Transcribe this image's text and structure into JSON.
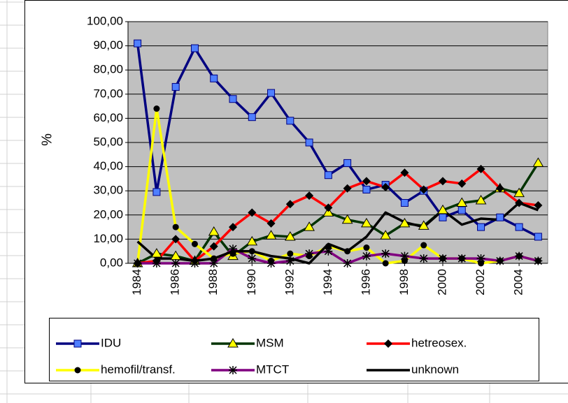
{
  "chart_data": {
    "type": "line",
    "y_label": "%",
    "x": [
      1984,
      1985,
      1986,
      1987,
      1988,
      1989,
      1990,
      1991,
      1992,
      1993,
      1994,
      1995,
      1996,
      1997,
      1998,
      1999,
      2000,
      2001,
      2002,
      2003,
      2004,
      2005
    ],
    "xlim": [
      1983.5,
      2005.5
    ],
    "xticks": [
      1984,
      1986,
      1988,
      1990,
      1992,
      1994,
      1996,
      1998,
      2000,
      2002,
      2004
    ],
    "ylim": [
      0,
      100
    ],
    "yticks": [
      {
        "value": 0,
        "label": "0,00"
      },
      {
        "value": 10,
        "label": "10,00"
      },
      {
        "value": 20,
        "label": "20,00"
      },
      {
        "value": 30,
        "label": "30,00"
      },
      {
        "value": 40,
        "label": "40,00"
      },
      {
        "value": 50,
        "label": "50,00"
      },
      {
        "value": 60,
        "label": "60,00"
      },
      {
        "value": 70,
        "label": "70,00"
      },
      {
        "value": 80,
        "label": "80,00"
      },
      {
        "value": 90,
        "label": "90,00"
      },
      {
        "value": 100,
        "label": "100,00"
      }
    ],
    "grid": true,
    "plot_background": "#c0c0c0",
    "series": [
      {
        "name": "IDU",
        "color": "#000080",
        "marker": "square",
        "marker_color": "#4f7fff",
        "values": [
          91,
          29.5,
          73,
          89,
          76.5,
          68,
          60.5,
          70.5,
          59,
          50,
          36.5,
          41.5,
          30.5,
          32.5,
          25,
          30,
          19,
          22,
          15,
          19,
          15,
          11
        ]
      },
      {
        "name": "MSM",
        "color": "#003300",
        "marker": "triangle",
        "marker_color": "#ffff00",
        "values": [
          0,
          4,
          3,
          1,
          13,
          3,
          9,
          11.5,
          11,
          15,
          21,
          18,
          16.5,
          11.5,
          16.5,
          15.5,
          22,
          25,
          26,
          31,
          29,
          41.5
        ]
      },
      {
        "name": "hetreosex.",
        "color": "#ff0000",
        "marker": "diamond",
        "marker_color": "#000000",
        "values": [
          0,
          1,
          10,
          1,
          7,
          15,
          21,
          16.5,
          24.5,
          28,
          23,
          31,
          34,
          31.5,
          37.5,
          30.5,
          34,
          33,
          39,
          31,
          25,
          24
        ]
      },
      {
        "name": "hemofil/transf.",
        "color": "#ffff00",
        "marker": "circle",
        "marker_color": "#000000",
        "values": [
          0,
          64,
          15,
          8,
          2,
          4,
          5,
          1,
          4,
          3,
          7,
          5,
          6.5,
          0,
          1,
          7.5,
          2,
          2,
          0,
          1,
          3,
          1
        ]
      },
      {
        "name": "MTCT",
        "color": "#800080",
        "marker": "star",
        "marker_color": "#000000",
        "values": [
          0,
          0,
          0,
          0,
          0,
          6,
          2,
          0,
          1,
          4,
          5,
          0,
          3,
          4,
          3,
          2,
          2,
          2,
          2,
          1,
          3,
          1
        ]
      },
      {
        "name": "unknown",
        "color": "#000000",
        "marker": "none",
        "marker_color": "#000000",
        "values": [
          9,
          2,
          2,
          1,
          2,
          5,
          5,
          3,
          2,
          0,
          8,
          5,
          11,
          21,
          17,
          15,
          22,
          16,
          18.5,
          18,
          25,
          22
        ]
      }
    ]
  }
}
